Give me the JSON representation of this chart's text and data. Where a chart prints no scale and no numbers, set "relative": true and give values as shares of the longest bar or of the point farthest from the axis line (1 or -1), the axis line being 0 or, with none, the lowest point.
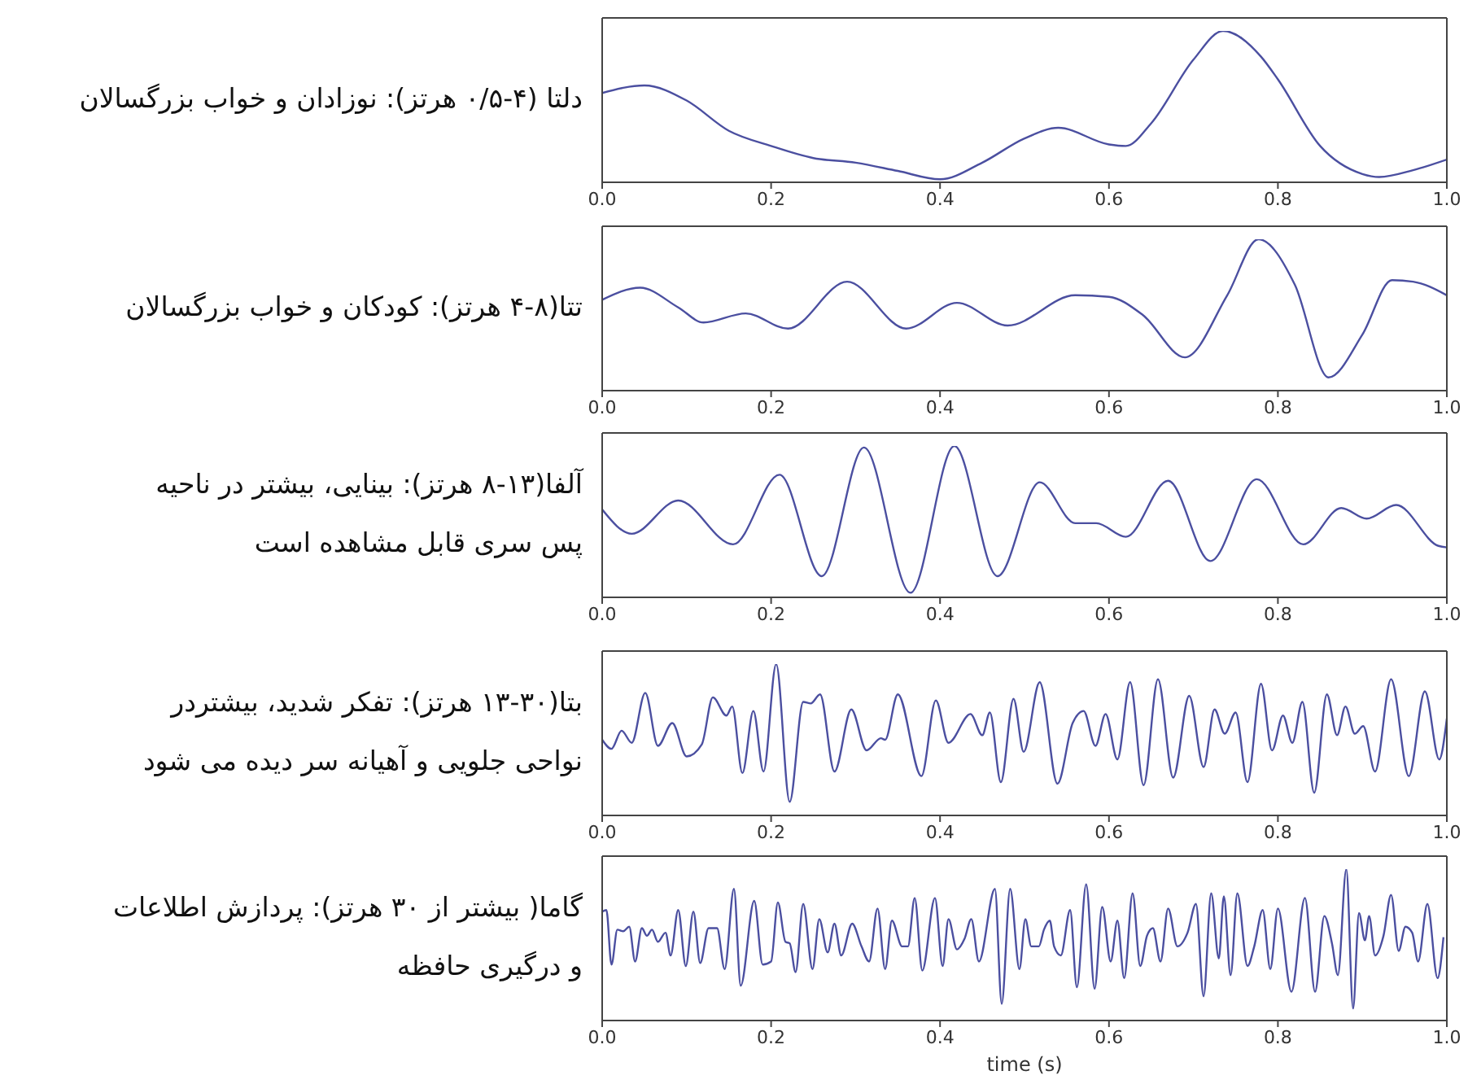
{
  "chart_data": [
    {
      "type": "line",
      "ylabel": "دلتا (۴-۰/۵ هرتز): نوزادان و خواب بزرگسالان",
      "relative": true,
      "tick_labels": "x",
      "xlim": [
        0,
        1
      ],
      "xticks": [
        {
          "value": 0,
          "label": "0.0"
        },
        {
          "value": 0.2,
          "label": "0.2"
        },
        {
          "value": 0.4,
          "label": "0.4"
        },
        {
          "value": 0.6,
          "label": "0.6"
        },
        {
          "value": 0.8,
          "label": "0.8"
        },
        {
          "value": 1,
          "label": "1.0"
        }
      ],
      "x": [
        0,
        0.05,
        0.1,
        0.15,
        0.2,
        0.25,
        0.3,
        0.35,
        0.4,
        0.45,
        0.5,
        0.54,
        0.6,
        0.62,
        0.65,
        0.7,
        0.735,
        0.78,
        0.8,
        0.85,
        0.9,
        0.92,
        0.96,
        1
      ],
      "series": [
        {
          "color": "#4b4fa0",
          "values": [
            0.59,
            0.64,
            0.54,
            0.34,
            0.24,
            0.16,
            0.13,
            0.075,
            0.02,
            0.13,
            0.29,
            0.36,
            0.25,
            0.24,
            0.39,
            0.81,
            1,
            0.83,
            0.68,
            0.24,
            0.055,
            0.035,
            0.08,
            0.15
          ]
        }
      ]
    },
    {
      "type": "line",
      "ylabel": "تتا(۸-۴ هرتز): کودکان و خواب بزرگسالان",
      "relative": true,
      "tick_labels": "x",
      "xlim": [
        0,
        1
      ],
      "xticks": [
        {
          "value": 0,
          "label": "0.0"
        },
        {
          "value": 0.2,
          "label": "0.2"
        },
        {
          "value": 0.4,
          "label": "0.4"
        },
        {
          "value": 0.6,
          "label": "0.6"
        },
        {
          "value": 0.8,
          "label": "0.8"
        },
        {
          "value": 1,
          "label": "1.0"
        }
      ],
      "x": [
        0,
        0.045,
        0.09,
        0.12,
        0.17,
        0.22,
        0.29,
        0.36,
        0.42,
        0.48,
        0.56,
        0.6,
        0.64,
        0.69,
        0.74,
        0.777,
        0.82,
        0.86,
        0.9,
        0.935,
        0.96,
        1
      ],
      "series": [
        {
          "color": "#4b4fa0",
          "values": [
            0.6,
            0.68,
            0.55,
            0.45,
            0.51,
            0.41,
            0.72,
            0.41,
            0.58,
            0.43,
            0.63,
            0.62,
            0.5,
            0.22,
            0.63,
            1,
            0.7,
            0.087,
            0.37,
            0.73,
            0.72,
            0.63
          ]
        }
      ]
    },
    {
      "type": "line",
      "ylabel": "آلفا(۱۳-۸ هرتز): بینایی، بیشتر در ناحیه\nپس سری قابل مشاهده است",
      "relative": true,
      "tick_labels": "x",
      "xlim": [
        0,
        1
      ],
      "xticks": [
        {
          "value": 0,
          "label": "0.0"
        },
        {
          "value": 0.2,
          "label": "0.2"
        },
        {
          "value": 0.4,
          "label": "0.4"
        },
        {
          "value": 0.6,
          "label": "0.6"
        },
        {
          "value": 0.8,
          "label": "0.8"
        },
        {
          "value": 1,
          "label": "1.0"
        }
      ],
      "x": [
        0,
        0.035,
        0.09,
        0.155,
        0.21,
        0.26,
        0.31,
        0.365,
        0.417,
        0.468,
        0.518,
        0.56,
        0.585,
        0.62,
        0.67,
        0.72,
        0.775,
        0.83,
        0.875,
        0.905,
        0.94,
        0.99,
        1
      ],
      "series": [
        {
          "color": "#4b4fa0",
          "values": [
            0.58,
            0.42,
            0.64,
            0.35,
            0.81,
            0.14,
            0.99,
            0.03,
            1,
            0.14,
            0.76,
            0.49,
            0.49,
            0.4,
            0.77,
            0.24,
            0.78,
            0.35,
            0.59,
            0.52,
            0.61,
            0.34,
            0.33
          ]
        }
      ]
    },
    {
      "type": "line",
      "ylabel": "بتا(۳۰-۱۳ هرتز): تفکر شدید، بیشتردر\nنواحی جلویی و آهیانه سر دیده می شود",
      "relative": true,
      "tick_labels": "x",
      "xlim": [
        0,
        1
      ],
      "xticks": [
        {
          "value": 0,
          "label": "0.0"
        },
        {
          "value": 0.2,
          "label": "0.2"
        },
        {
          "value": 0.4,
          "label": "0.4"
        },
        {
          "value": 0.6,
          "label": "0.6"
        },
        {
          "value": 0.8,
          "label": "0.8"
        },
        {
          "value": 1,
          "label": "1.0"
        }
      ],
      "x": [
        0,
        0.011,
        0.023,
        0.035,
        0.051,
        0.066,
        0.083,
        0.1,
        0.118,
        0.131,
        0.147,
        0.154,
        0.166,
        0.179,
        0.191,
        0.206,
        0.222,
        0.238,
        0.247,
        0.258,
        0.275,
        0.295,
        0.313,
        0.33,
        0.335,
        0.35,
        0.378,
        0.395,
        0.41,
        0.436,
        0.45,
        0.459,
        0.472,
        0.487,
        0.499,
        0.518,
        0.539,
        0.557,
        0.57,
        0.584,
        0.596,
        0.61,
        0.625,
        0.641,
        0.658,
        0.676,
        0.695,
        0.712,
        0.725,
        0.737,
        0.75,
        0.764,
        0.78,
        0.793,
        0.806,
        0.817,
        0.829,
        0.843,
        0.858,
        0.87,
        0.88,
        0.891,
        0.901,
        0.915,
        0.934,
        0.955,
        0.974,
        0.991,
        1
      ],
      "series": [
        {
          "color": "#4b4fa0",
          "values": [
            0.5,
            0.44,
            0.56,
            0.48,
            0.81,
            0.46,
            0.61,
            0.39,
            0.47,
            0.78,
            0.66,
            0.72,
            0.28,
            0.69,
            0.29,
            1,
            0.09,
            0.75,
            0.74,
            0.8,
            0.29,
            0.7,
            0.43,
            0.51,
            0.5,
            0.8,
            0.26,
            0.76,
            0.48,
            0.67,
            0.53,
            0.68,
            0.22,
            0.77,
            0.42,
            0.88,
            0.21,
            0.61,
            0.69,
            0.46,
            0.67,
            0.37,
            0.88,
            0.2,
            0.9,
            0.25,
            0.79,
            0.32,
            0.7,
            0.54,
            0.68,
            0.22,
            0.87,
            0.43,
            0.66,
            0.48,
            0.75,
            0.15,
            0.8,
            0.53,
            0.72,
            0.54,
            0.59,
            0.29,
            0.9,
            0.26,
            0.82,
            0.37,
            0.64
          ]
        }
      ]
    },
    {
      "type": "line",
      "ylabel": "گاما( بیشتر از ۳۰ هرتز): پردازش اطلاعات\nو درگیری حافظه",
      "xlabel": "time (s)",
      "relative": true,
      "tick_labels": "x",
      "xlim": [
        0,
        1
      ],
      "xticks": [
        {
          "value": 0,
          "label": "0.0"
        },
        {
          "value": 0.2,
          "label": "0.2"
        },
        {
          "value": 0.4,
          "label": "0.4"
        },
        {
          "value": 0.6,
          "label": "0.6"
        },
        {
          "value": 0.8,
          "label": "0.8"
        },
        {
          "value": 1,
          "label": "1.0"
        }
      ],
      "x": [
        0,
        0.005,
        0.011,
        0.018,
        0.025,
        0.032,
        0.039,
        0.047,
        0.053,
        0.059,
        0.066,
        0.075,
        0.081,
        0.09,
        0.099,
        0.108,
        0.116,
        0.126,
        0.136,
        0.145,
        0.156,
        0.164,
        0.18,
        0.19,
        0.2,
        0.208,
        0.217,
        0.222,
        0.229,
        0.238,
        0.249,
        0.257,
        0.267,
        0.275,
        0.283,
        0.296,
        0.307,
        0.316,
        0.326,
        0.335,
        0.343,
        0.355,
        0.362,
        0.37,
        0.379,
        0.394,
        0.403,
        0.41,
        0.42,
        0.429,
        0.437,
        0.446,
        0.465,
        0.473,
        0.483,
        0.494,
        0.501,
        0.508,
        0.517,
        0.523,
        0.53,
        0.535,
        0.543,
        0.554,
        0.562,
        0.573,
        0.583,
        0.592,
        0.602,
        0.61,
        0.618,
        0.628,
        0.637,
        0.645,
        0.652,
        0.661,
        0.67,
        0.681,
        0.693,
        0.703,
        0.712,
        0.721,
        0.73,
        0.736,
        0.744,
        0.752,
        0.764,
        0.772,
        0.782,
        0.791,
        0.8,
        0.816,
        0.832,
        0.844,
        0.855,
        0.864,
        0.871,
        0.881,
        0.889,
        0.896,
        0.903,
        0.908,
        0.915,
        0.925,
        0.934,
        0.943,
        0.951,
        0.959,
        0.966,
        0.977,
        0.989,
        0.996
      ],
      "series": [
        {
          "color": "#4b4fa0",
          "values": [
            0.72,
            0.73,
            0.37,
            0.6,
            0.59,
            0.62,
            0.39,
            0.61,
            0.56,
            0.6,
            0.52,
            0.58,
            0.43,
            0.73,
            0.36,
            0.72,
            0.38,
            0.61,
            0.61,
            0.34,
            0.87,
            0.23,
            0.79,
            0.37,
            0.39,
            0.78,
            0.52,
            0.51,
            0.32,
            0.77,
            0.34,
            0.67,
            0.45,
            0.64,
            0.43,
            0.64,
            0.49,
            0.39,
            0.74,
            0.34,
            0.66,
            0.49,
            0.49,
            0.81,
            0.33,
            0.81,
            0.36,
            0.67,
            0.47,
            0.54,
            0.67,
            0.39,
            0.87,
            0.11,
            0.87,
            0.34,
            0.67,
            0.49,
            0.49,
            0.6,
            0.66,
            0.49,
            0.43,
            0.73,
            0.22,
            0.9,
            0.21,
            0.75,
            0.39,
            0.66,
            0.28,
            0.84,
            0.36,
            0.56,
            0.61,
            0.39,
            0.74,
            0.49,
            0.58,
            0.77,
            0.16,
            0.84,
            0.41,
            0.82,
            0.3,
            0.84,
            0.36,
            0.49,
            0.73,
            0.34,
            0.74,
            0.19,
            0.81,
            0.19,
            0.69,
            0.51,
            0.3,
            1,
            0.08,
            0.71,
            0.53,
            0.69,
            0.43,
            0.56,
            0.83,
            0.46,
            0.62,
            0.58,
            0.39,
            0.77,
            0.28,
            0.55
          ]
        }
      ]
    }
  ]
}
